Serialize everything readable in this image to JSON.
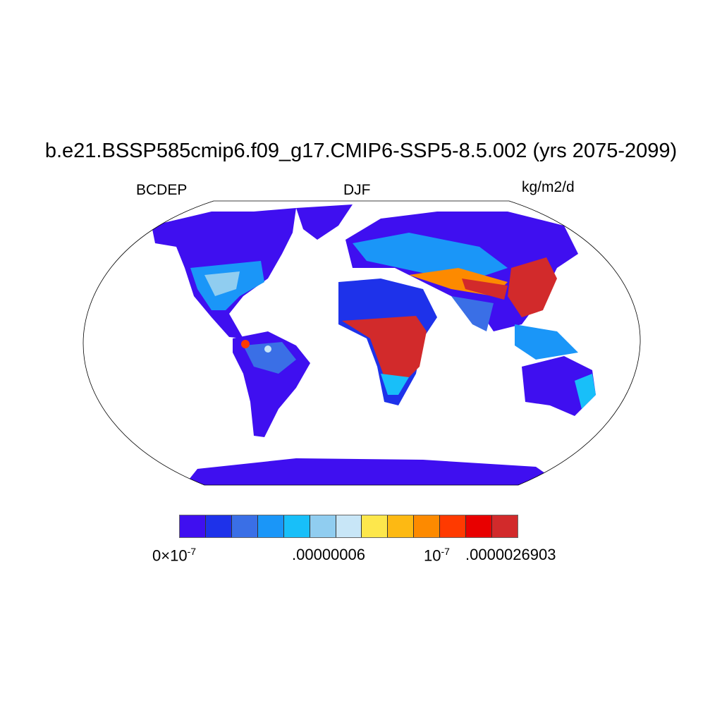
{
  "title": "b.e21.BSSP585cmip6.f09_g17.CMIP6-SSP5-8.5.002 (yrs 2075-2099)",
  "left_label": "BCDEP",
  "center_label": "DJF",
  "right_label": "kg/m2/d",
  "projection": "Robinson",
  "colorbar": {
    "colors": [
      "#3f0ff0",
      "#1e32ea",
      "#3a6fe6",
      "#1a96f8",
      "#18bff9",
      "#90cdf0",
      "#c8e6f7",
      "#fde74c",
      "#fdb913",
      "#fd8a00",
      "#ff3a00",
      "#e80000",
      "#d22a2b"
    ],
    "labels": {
      "first_base": "0×10",
      "first_exp": "-7",
      "mid": ".00000006",
      "third_base": "10",
      "third_exp": "-7",
      "last": ".0000026903"
    }
  }
}
